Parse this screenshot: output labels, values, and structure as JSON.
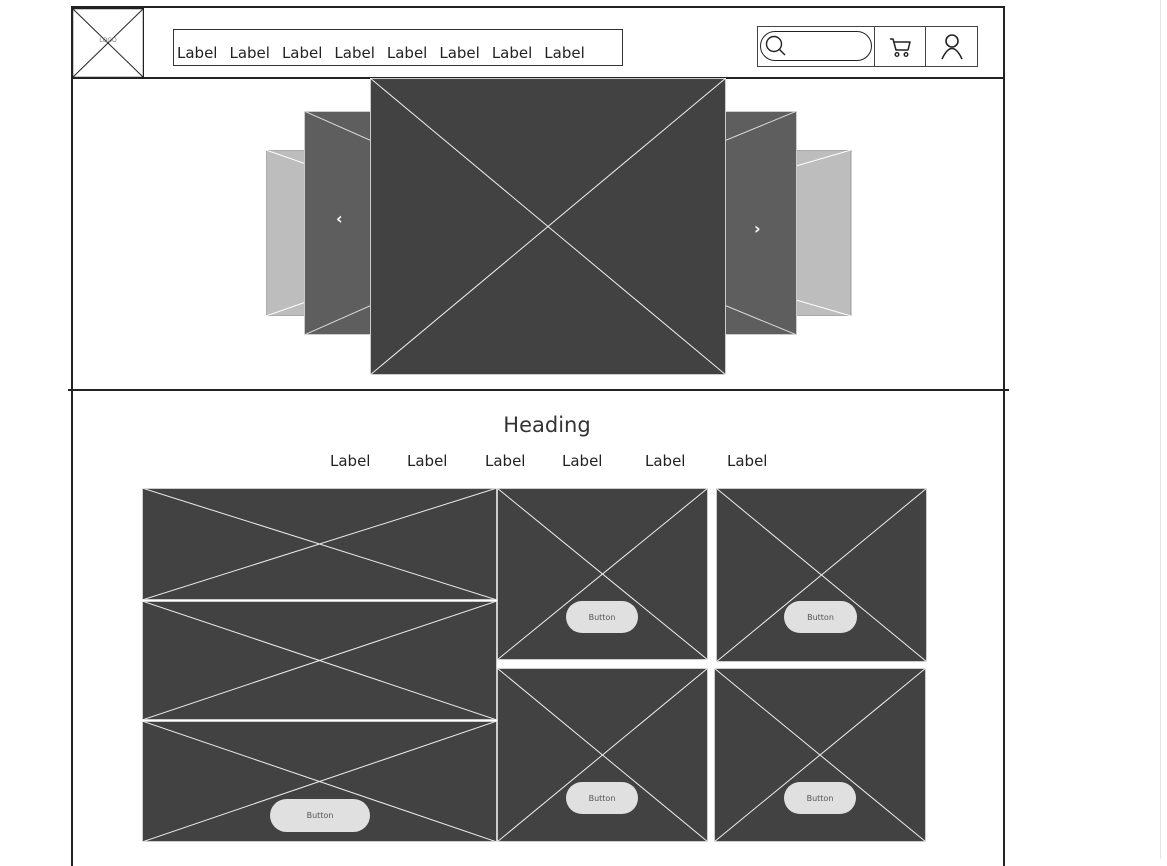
{
  "header": {
    "logo_text": "LOGO",
    "nav_items": [
      "Label",
      "Label",
      "Label",
      "Label",
      "Label",
      "Label",
      "Label",
      "Label"
    ],
    "search": {
      "placeholder": ""
    },
    "icons": [
      "search-icon",
      "cart-icon",
      "user-icon"
    ]
  },
  "carousel": {
    "prev_label": "‹",
    "next_label": "›"
  },
  "section": {
    "heading": "Heading",
    "categories": [
      "Label",
      "Label",
      "Label",
      "Label",
      "Label",
      "Label"
    ]
  },
  "gallery": {
    "buttons": [
      "Button",
      "Button",
      "Button",
      "Button",
      "Button"
    ]
  },
  "colors": {
    "dark_placeholder": "#424242",
    "mid_placeholder": "#5e5e5e",
    "light_placeholder": "#bdbdbd",
    "button_fill": "#e0e0e0",
    "line": "#222222"
  }
}
